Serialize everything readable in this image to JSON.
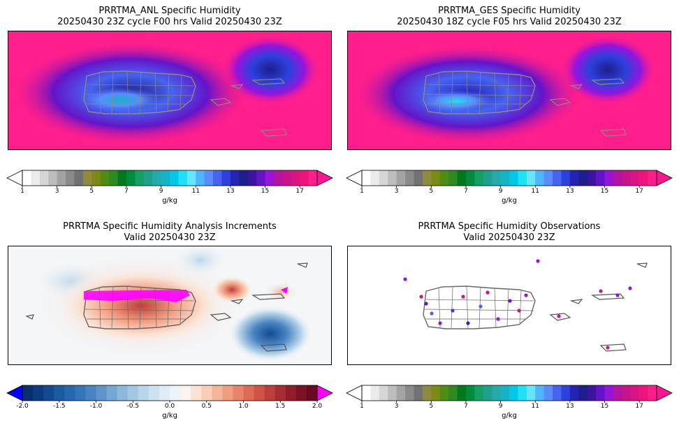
{
  "panels": [
    {
      "id": "anl",
      "title_line1": "PRRTMA_ANL Specific Humidity",
      "title_line2": "20250430 23Z cycle F00 hrs Valid 20250430 23Z",
      "field": "humidity"
    },
    {
      "id": "ges",
      "title_line1": "PRRTMA_GES Specific Humidity",
      "title_line2": "20250430 18Z cycle F05 hrs Valid 20250430 23Z",
      "field": "humidity"
    },
    {
      "id": "inc",
      "title_line1": "PRRTMA Specific Humidity Analysis Increments",
      "title_line2": "Valid 20250430 23Z",
      "field": "increment"
    },
    {
      "id": "obs",
      "title_line1": "PRRTMA Specific Humidity Observations",
      "title_line2": "Valid 20250430 23Z",
      "field": "obs"
    }
  ],
  "colorbars": {
    "humidity": {
      "label": "g/kg",
      "ticks": [
        "1",
        "3",
        "5",
        "7",
        "9",
        "11",
        "13",
        "15",
        "17"
      ],
      "tick_values": [
        1,
        3,
        5,
        7,
        9,
        11,
        13,
        15,
        17
      ],
      "range": [
        1,
        18
      ],
      "colors": [
        "#ffffff",
        "#ebebeb",
        "#d6d6d6",
        "#bdbdbd",
        "#a3a3a3",
        "#8a8a8a",
        "#727272",
        "#8c8c3a",
        "#7a8c14",
        "#4f8c14",
        "#2e8a1e",
        "#00781e",
        "#008c3c",
        "#14a064",
        "#1ea08c",
        "#23aaaa",
        "#14b4c8",
        "#00c8e6",
        "#1ee1f5",
        "#64e6ff",
        "#50b4ff",
        "#5a8cff",
        "#4664f0",
        "#2d41dc",
        "#2323b4",
        "#1e1e8c",
        "#3c14a0",
        "#6414c8",
        "#9614dc",
        "#b414a0",
        "#c8148c",
        "#dc1480",
        "#f0147a",
        "#ff1e8c"
      ],
      "under_color": "#ffffff",
      "over_color": "#ff1493"
    },
    "increment": {
      "label": "g/kg",
      "ticks": [
        "-2.0",
        "-1.5",
        "-1.0",
        "-0.5",
        "0.0",
        "0.5",
        "1.0",
        "1.5",
        "2.0"
      ],
      "tick_values": [
        -2,
        -1.5,
        -1,
        -0.5,
        0,
        0.5,
        1,
        1.5,
        2
      ],
      "range": [
        -2,
        2
      ],
      "colors": [
        "#08306b",
        "#0b3c80",
        "#134b92",
        "#1c5aa3",
        "#2767b0",
        "#3474b8",
        "#4884c1",
        "#5d95c9",
        "#74a7d2",
        "#8bb8db",
        "#a2c8e3",
        "#b8d6ea",
        "#cde2f0",
        "#e0ecf5",
        "#eef3f8",
        "#fbf3ee",
        "#fbe2d3",
        "#f9cdb7",
        "#f6b59b",
        "#f29c80",
        "#ea8468",
        "#de6c55",
        "#cf5446",
        "#bd3f3a",
        "#a92c32",
        "#931c2b",
        "#7c1025",
        "#650a20"
      ],
      "under_color": "#0000ff",
      "over_color": "#ff00ff"
    }
  },
  "chart_data": [
    {
      "type": "heatmap",
      "title": "PRRTMA_ANL Specific Humidity 20250430 23Z cycle F00 hrs Valid 20250430 23Z",
      "colorbar_label": "g/kg",
      "colorbar_range": [
        1,
        18
      ],
      "colorbar_ticks": [
        1,
        3,
        5,
        7,
        9,
        11,
        13,
        15,
        17
      ]
    },
    {
      "type": "heatmap",
      "title": "PRRTMA_GES Specific Humidity 20250430 18Z cycle F05 hrs Valid 20250430 23Z",
      "colorbar_label": "g/kg",
      "colorbar_range": [
        1,
        18
      ],
      "colorbar_ticks": [
        1,
        3,
        5,
        7,
        9,
        11,
        13,
        15,
        17
      ]
    },
    {
      "type": "heatmap",
      "title": "PRRTMA Specific Humidity Analysis Increments Valid 20250430 23Z",
      "colorbar_label": "g/kg",
      "colorbar_range": [
        -2,
        2
      ],
      "colorbar_ticks": [
        -2.0,
        -1.5,
        -1.0,
        -0.5,
        0.0,
        0.5,
        1.0,
        1.5,
        2.0
      ]
    },
    {
      "type": "scatter",
      "title": "PRRTMA Specific Humidity Observations Valid 20250430 23Z",
      "colorbar_label": "g/kg",
      "colorbar_range": [
        1,
        18
      ],
      "colorbar_ticks": [
        1,
        3,
        5,
        7,
        9,
        11,
        13,
        15,
        17
      ]
    }
  ]
}
